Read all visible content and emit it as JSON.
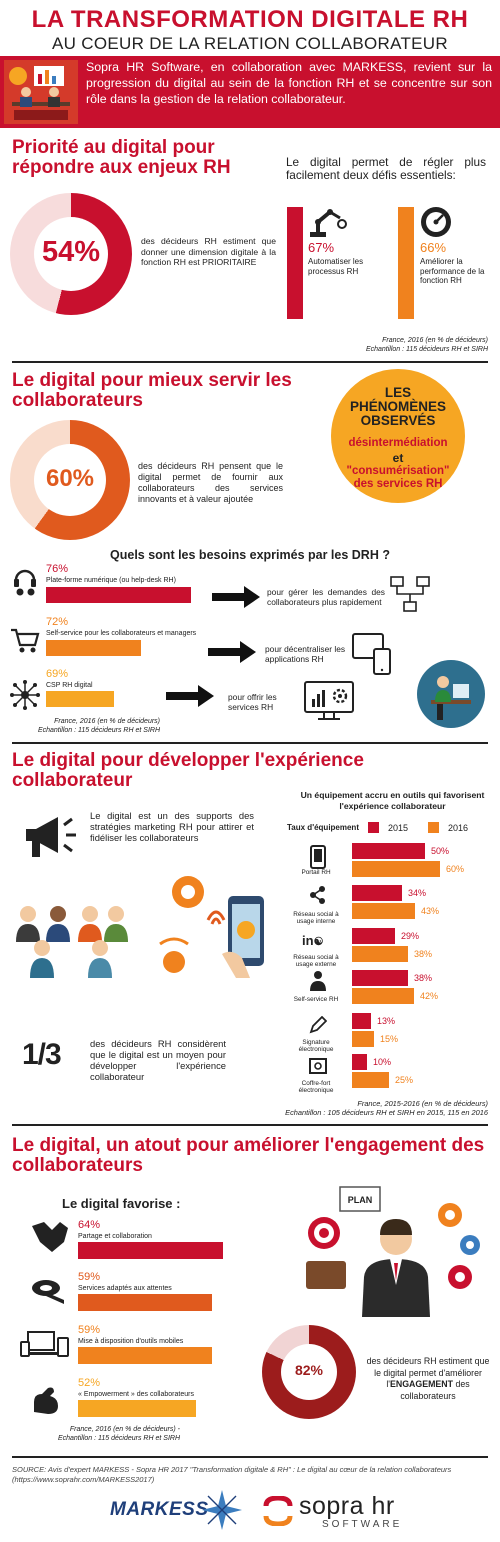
{
  "colors": {
    "red": "#c8102e",
    "orange": "#f0821e",
    "deep_orange": "#e05a1e",
    "yellow_orange": "#f6a623",
    "dark_red": "#9c1c1c"
  },
  "header": {
    "title": "LA TRANSFORMATION DIGITALE RH",
    "subtitle": "AU COEUR DE LA RELATION COLLABORATEUR",
    "intro": "Sopra HR Software, en collaboration avec MARKESS, revient sur la progression du digital au sein de la fonction RH et se concentre sur son rôle dans la gestion de la relation collaborateur."
  },
  "s1": {
    "heading": "Priorité au digital pour répondre aux enjeux RH",
    "donut_value": "54%",
    "donut_pct": 54,
    "donut_text": "des décideurs RH estiment que donner une dimension digitale à la fonction RH est PRIORITAIRE",
    "right_title": "Le digital permet de régler plus facilement deux défis essentiels:",
    "stat1_value": "67%",
    "stat1_label": "Automatiser les processus RH",
    "stat2_value": "66%",
    "stat2_label": "Améliorer la performance de la fonction RH",
    "note1": "France, 2016 (en % de décideurs)",
    "note2": "Echantillon : 115 décideurs RH et SIRH"
  },
  "s2": {
    "heading": "Le digital pour mieux servir les collaborateurs",
    "donut_value": "60%",
    "donut_pct": 60,
    "donut_text": "des décideurs RH pensent que le digital permet de fournir aux collaborateurs des services innovants et à valeur ajoutée",
    "circle_title": "LES PHÉNOMÈNES OBSERVÉS",
    "circle_t1": "désintermédiation",
    "circle_and": "et",
    "circle_t2": "\"consumérisation\" des services RH",
    "question": "Quels sont les besoins exprimés par les DRH ?",
    "needs": [
      {
        "value": "76%",
        "label": "Plate-forme numérique (ou help-desk RH)",
        "target": "pour gérer les demandes des collaborateurs plus rapidement"
      },
      {
        "value": "72%",
        "label": "Self-service pour les collaborateurs et managers",
        "target": "pour décentraliser les applications RH"
      },
      {
        "value": "69%",
        "label": "CSP RH digital",
        "target": "pour offrir les services RH"
      }
    ],
    "note1": "France, 2016 (en % de décideurs)",
    "note2": "Echantillon : 115 décideurs RH et SIRH"
  },
  "s3": {
    "heading": "Le digital pour développer l'expérience collaborateur",
    "text1": "Le digital est un des supports des stratégies marketing RH pour attirer et fidéliser les collaborateurs",
    "third_value": "1/3",
    "text2": "des décideurs RH considèrent que le digital est un moyen pour développer l'expérience collaborateur",
    "note1": "France, 2015-2016 (en % de décideurs)",
    "note2": "Echantillon : 105 décideurs RH et SIRH en 2015, 115 en 2016"
  },
  "chart_data": {
    "type": "bar",
    "title": "Un équipement accru en outils qui favorisent l'expérience collaborateur",
    "ylabel": "Taux d'équipement",
    "categories": [
      "Portail RH",
      "Réseau social à usage interne",
      "Réseau social à usage externe",
      "Self-service RH",
      "Signature électronique",
      "Coffre-fort électronique"
    ],
    "series": [
      {
        "name": "2015",
        "values": [
          50,
          34,
          29,
          38,
          13,
          10
        ],
        "labels": [
          "50%",
          "34%",
          "29%",
          "38%",
          "13%",
          "10%"
        ]
      },
      {
        "name": "2016",
        "values": [
          60,
          43,
          38,
          42,
          15,
          25
        ],
        "labels": [
          "60%",
          "43%",
          "38%",
          "42%",
          "15%",
          "25%"
        ]
      }
    ],
    "xlim": [
      0,
      60
    ],
    "legend": "top"
  },
  "s4": {
    "heading": "Le digital, un atout pour améliorer l'engagement des collaborateurs",
    "favor_title": "Le digital favorise :",
    "items": [
      {
        "value": "64%",
        "pct": 64,
        "label": "Partage et collaboration",
        "color": "#c8102e"
      },
      {
        "value": "59%",
        "pct": 59,
        "label": "Services adaptés aux attentes",
        "color": "#e05a1e"
      },
      {
        "value": "59%",
        "pct": 59,
        "label": "Mise à disposition d'outils mobiles",
        "color": "#f0821e"
      },
      {
        "value": "52%",
        "pct": 52,
        "label": "« Empowerment » des collaborateurs",
        "color": "#f6a623"
      }
    ],
    "plan_label": "PLAN",
    "donut_value": "82%",
    "donut_pct": 82,
    "donut_text_a": "des décideurs RH estiment que le digital permet d'améliorer l'",
    "donut_text_b": "ENGAGEMENT",
    "donut_text_c": " des collaborateurs",
    "note1": "France, 2016 (en % de décideurs) -",
    "note2": "Echantillon : 115 décideurs RH et SIRH"
  },
  "footer": {
    "source": "SOURCE: Avis d'expert MARKESS - Sopra HR 2017 \"Transformation digitale & RH\" : Le digital au cœur de la relation collaborateurs (https://www.soprahr.com/MARKESS2017)",
    "logo1": "MARKESS",
    "logo2_a": "sopra hr",
    "logo2_b": "SOFTWARE"
  }
}
